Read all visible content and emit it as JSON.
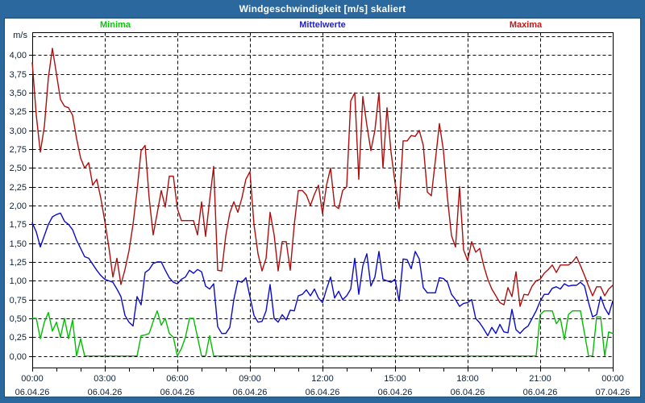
{
  "window": {
    "title": "Windgeschwindigkeit [m/s] skaliert",
    "frame_color": "#2B689E",
    "title_text_color": "#FFFFFF"
  },
  "legend": {
    "items": [
      {
        "label": "Minima",
        "color": "#00CC00"
      },
      {
        "label": "Mittelwerte",
        "color": "#2222CC"
      },
      {
        "label": "Maxima",
        "color": "#CC1414"
      }
    ]
  },
  "axes": {
    "y_unit": "m/s",
    "y_tick_labels": [
      "0,00",
      "0,25",
      "0,50",
      "0,75",
      "1,00",
      "1,25",
      "1,50",
      "1,75",
      "2,00",
      "2,25",
      "2,50",
      "2,75",
      "3,00",
      "3,25",
      "3,50",
      "3,75",
      "4,00"
    ],
    "x_ticks": [
      {
        "time": "00:00",
        "date": "06.04.26"
      },
      {
        "time": "03:00",
        "date": "06.04.26"
      },
      {
        "time": "06:00",
        "date": "06.04.26"
      },
      {
        "time": "09:00",
        "date": "06.04.26"
      },
      {
        "time": "12:00",
        "date": "06.04.26"
      },
      {
        "time": "15:00",
        "date": "06.04.26"
      },
      {
        "time": "18:00",
        "date": "06.04.26"
      },
      {
        "time": "21:00",
        "date": "06.04.26"
      },
      {
        "time": "00:00",
        "date": "07.04.26"
      }
    ],
    "tick_text_color": "#0D2238"
  },
  "chart_data": {
    "type": "line",
    "title": "Windgeschwindigkeit [m/s] skaliert",
    "ylabel": "m/s",
    "ylim": [
      0,
      4.25
    ],
    "ytick_step": 0.25,
    "grid": "dashed",
    "legend_position": "top",
    "x_start_minutes": 0,
    "x_step_minutes": 10,
    "x_total_minutes": 1440,
    "series": [
      {
        "name": "Minima",
        "color": "#00BE00",
        "values": [
          0.5,
          0.5,
          0.23,
          0.45,
          0.58,
          0.33,
          0.45,
          0.25,
          0.5,
          0.23,
          0.48,
          0.0,
          0.23,
          0.0,
          0.0,
          0.0,
          0.0,
          0.0,
          0.0,
          0.0,
          0.0,
          0.0,
          0.0,
          0.0,
          0.0,
          0.0,
          0.0,
          0.27,
          0.28,
          0.3,
          0.46,
          0.6,
          0.41,
          0.5,
          0.3,
          0.25,
          0.0,
          0.1,
          0.25,
          0.5,
          0.5,
          0.25,
          0.0,
          0.0,
          0.27,
          0.0,
          0.0,
          0.0,
          0.0,
          0.0,
          0.0,
          0.0,
          0.0,
          0.0,
          0.0,
          0.0,
          0.0,
          0.0,
          0.0,
          0.0,
          0.0,
          0.0,
          0.0,
          0.0,
          0.0,
          0.0,
          0.0,
          0.0,
          0.0,
          0.0,
          0.0,
          0.0,
          0.0,
          0.0,
          0.0,
          0.0,
          0.0,
          0.0,
          0.0,
          0.0,
          0.0,
          0.0,
          0.0,
          0.0,
          0.0,
          0.0,
          0.0,
          0.0,
          0.0,
          0.0,
          0.0,
          0.0,
          0.0,
          0.0,
          0.0,
          0.0,
          0.0,
          0.0,
          0.0,
          0.0,
          0.0,
          0.0,
          0.0,
          0.0,
          0.0,
          0.0,
          0.0,
          0.0,
          0.0,
          0.0,
          0.0,
          0.0,
          0.0,
          0.0,
          0.0,
          0.0,
          0.0,
          0.0,
          0.0,
          0.0,
          0.0,
          0.0,
          0.0,
          0.0,
          0.0,
          0.0,
          0.55,
          0.6,
          0.6,
          0.6,
          0.43,
          0.5,
          0.22,
          0.55,
          0.6,
          0.6,
          0.6,
          0.3,
          0.0,
          0.0,
          0.52,
          0.52,
          0.0,
          0.32,
          0.3
        ]
      },
      {
        "name": "Mittelwerte",
        "color": "#0A0ACC",
        "values": [
          1.77,
          1.65,
          1.45,
          1.6,
          1.75,
          1.85,
          1.88,
          1.9,
          1.79,
          1.75,
          1.68,
          1.54,
          1.43,
          1.32,
          1.3,
          1.22,
          1.14,
          1.07,
          1.02,
          1.0,
          0.98,
          0.89,
          0.79,
          0.54,
          0.45,
          0.4,
          0.79,
          0.68,
          1.11,
          1.15,
          1.23,
          1.25,
          1.25,
          1.14,
          1.04,
          0.98,
          0.96,
          1.02,
          1.05,
          1.14,
          1.1,
          1.15,
          1.12,
          0.93,
          0.89,
          0.96,
          0.39,
          0.3,
          0.3,
          0.38,
          0.75,
          1.0,
          0.98,
          1.04,
          0.79,
          0.54,
          0.45,
          0.46,
          0.6,
          0.95,
          0.5,
          0.45,
          0.55,
          0.48,
          0.61,
          0.6,
          0.8,
          0.82,
          0.88,
          0.8,
          0.89,
          0.77,
          0.71,
          0.89,
          1.05,
          0.77,
          0.86,
          0.75,
          0.8,
          0.89,
          1.3,
          0.82,
          1.2,
          1.36,
          0.93,
          1.05,
          1.39,
          1.02,
          1.0,
          0.98,
          1.02,
          0.73,
          1.29,
          1.28,
          1.16,
          1.39,
          1.29,
          0.91,
          0.84,
          0.84,
          0.84,
          1.04,
          1.03,
          0.98,
          0.82,
          0.75,
          0.66,
          0.7,
          0.71,
          0.75,
          0.5,
          0.44,
          0.36,
          0.27,
          0.38,
          0.3,
          0.42,
          0.32,
          0.31,
          0.62,
          0.35,
          0.3,
          0.36,
          0.4,
          0.5,
          0.6,
          0.73,
          0.82,
          0.82,
          0.9,
          0.92,
          0.89,
          0.96,
          0.93,
          0.94,
          0.94,
          0.98,
          0.93,
          0.71,
          0.52,
          0.55,
          0.79,
          0.64,
          0.55,
          0.73
        ]
      },
      {
        "name": "Maxima",
        "color": "#AE0E0E",
        "values": [
          3.9,
          3.2,
          2.71,
          3.05,
          3.7,
          4.09,
          3.75,
          3.41,
          3.32,
          3.3,
          3.2,
          2.89,
          2.63,
          2.5,
          2.57,
          2.27,
          2.35,
          2.1,
          1.79,
          1.45,
          1.05,
          1.3,
          0.95,
          1.15,
          1.4,
          1.75,
          2.2,
          2.73,
          2.8,
          2.1,
          1.61,
          1.9,
          2.2,
          1.98,
          2.39,
          2.39,
          1.96,
          1.8,
          1.8,
          1.8,
          1.8,
          1.61,
          2.05,
          1.59,
          2.07,
          2.52,
          1.14,
          1.13,
          1.6,
          1.9,
          2.05,
          1.91,
          2.1,
          2.35,
          2.45,
          1.75,
          1.36,
          1.13,
          1.3,
          1.91,
          1.61,
          1.13,
          1.52,
          1.52,
          1.14,
          1.75,
          2.2,
          2.2,
          2.14,
          2.0,
          2.15,
          2.27,
          1.89,
          2.27,
          2.5,
          2.0,
          1.96,
          2.2,
          2.25,
          3.39,
          3.5,
          2.35,
          3.45,
          3.07,
          2.73,
          3.0,
          3.5,
          2.5,
          3.3,
          2.71,
          2.3,
          1.96,
          2.86,
          2.86,
          2.93,
          2.92,
          3.0,
          2.8,
          2.18,
          2.13,
          2.6,
          3.09,
          2.73,
          2.1,
          1.6,
          1.45,
          2.25,
          1.41,
          1.27,
          1.52,
          1.38,
          1.43,
          1.2,
          1.02,
          0.89,
          0.8,
          0.71,
          0.68,
          0.91,
          0.79,
          1.12,
          0.66,
          0.82,
          0.81,
          0.93,
          1.0,
          1.02,
          1.1,
          1.15,
          1.21,
          1.11,
          1.21,
          1.21,
          1.21,
          1.25,
          1.32,
          1.2,
          1.07,
          0.93,
          0.8,
          0.92,
          0.92,
          0.8,
          0.89,
          0.94
        ]
      }
    ]
  }
}
